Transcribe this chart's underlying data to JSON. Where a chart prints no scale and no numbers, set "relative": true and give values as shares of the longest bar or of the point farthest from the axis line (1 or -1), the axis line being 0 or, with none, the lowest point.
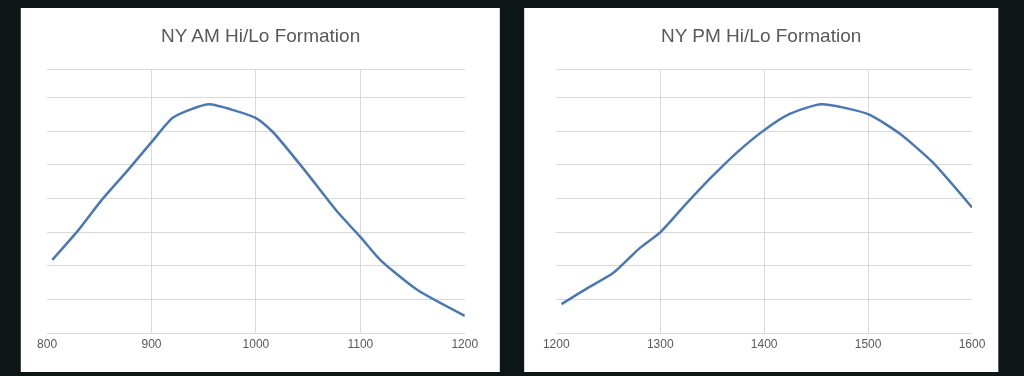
{
  "chart_data": [
    {
      "type": "line",
      "title": "NY AM Hi/Lo Formation",
      "relative": true,
      "grid": true,
      "tick_labels": "x",
      "xlim": [
        800,
        1200
      ],
      "xticks": [
        800,
        900,
        1000,
        1100,
        1200
      ],
      "series": [
        {
          "color": "#4a78b5",
          "x": [
            805,
            830,
            852,
            877,
            901,
            920,
            939,
            955,
            1000,
            1016,
            1047,
            1078,
            1100,
            1119,
            1154,
            1200
          ],
          "values": [
            0.32,
            0.45,
            0.58,
            0.71,
            0.84,
            0.94,
            0.98,
            1.0,
            0.94,
            0.88,
            0.71,
            0.53,
            0.42,
            0.32,
            0.19,
            0.075
          ]
        }
      ]
    },
    {
      "type": "line",
      "title": "NY PM Hi/Lo Formation",
      "relative": true,
      "grid": true,
      "tick_labels": "x",
      "xlim": [
        1200,
        1600
      ],
      "xticks": [
        1200,
        1300,
        1400,
        1500,
        1600
      ],
      "series": [
        {
          "color": "#4a78b5",
          "x": [
            1205,
            1230,
            1255,
            1280,
            1300,
            1324,
            1349,
            1374,
            1400,
            1424,
            1455,
            1500,
            1530,
            1562,
            1600
          ],
          "values": [
            0.126,
            0.196,
            0.263,
            0.37,
            0.44,
            0.56,
            0.68,
            0.79,
            0.887,
            0.957,
            1.0,
            0.957,
            0.873,
            0.747,
            0.549
          ]
        }
      ]
    }
  ]
}
